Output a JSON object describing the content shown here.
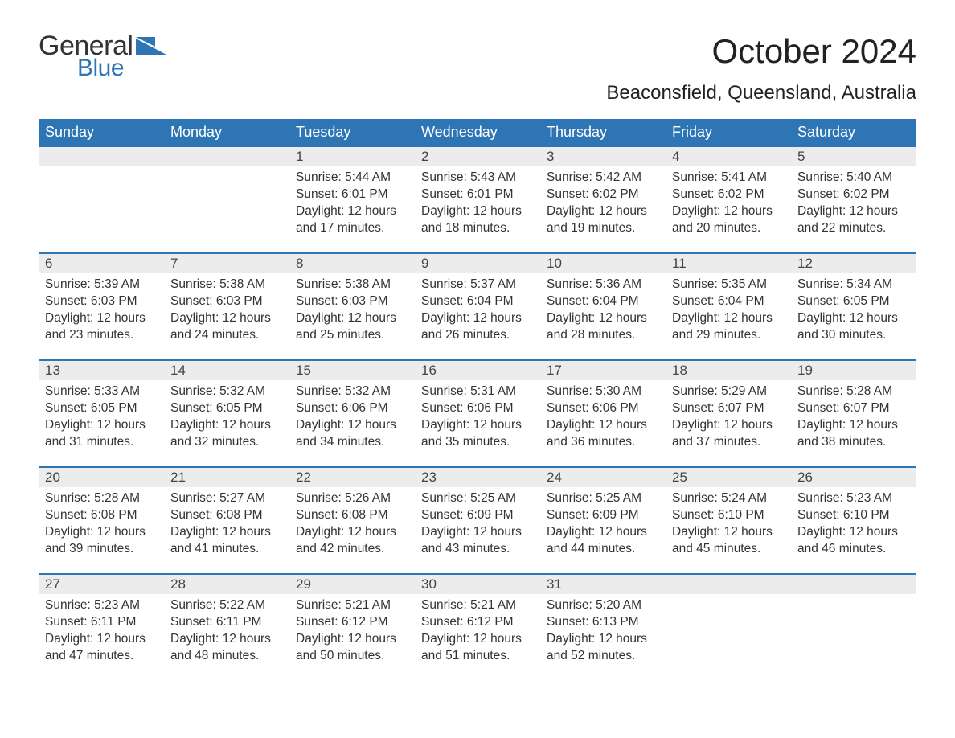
{
  "logo": {
    "general": "General",
    "blue": "Blue",
    "shape_color": "#2e75b6"
  },
  "title": "October 2024",
  "location": "Beaconsfield, Queensland, Australia",
  "colors": {
    "header_bg": "#2e75b6",
    "header_text": "#ffffff",
    "daynum_bg": "#ececec",
    "border_top": "#2e75b6",
    "body_text": "#333333"
  },
  "typography": {
    "title_fontsize": 42,
    "location_fontsize": 24,
    "header_fontsize": 18,
    "daynum_fontsize": 17,
    "body_fontsize": 15.5
  },
  "day_headers": [
    "Sunday",
    "Monday",
    "Tuesday",
    "Wednesday",
    "Thursday",
    "Friday",
    "Saturday"
  ],
  "weeks": [
    [
      null,
      null,
      {
        "num": "1",
        "sunrise": "5:44 AM",
        "sunset": "6:01 PM",
        "daylight": "12 hours and 17 minutes."
      },
      {
        "num": "2",
        "sunrise": "5:43 AM",
        "sunset": "6:01 PM",
        "daylight": "12 hours and 18 minutes."
      },
      {
        "num": "3",
        "sunrise": "5:42 AM",
        "sunset": "6:02 PM",
        "daylight": "12 hours and 19 minutes."
      },
      {
        "num": "4",
        "sunrise": "5:41 AM",
        "sunset": "6:02 PM",
        "daylight": "12 hours and 20 minutes."
      },
      {
        "num": "5",
        "sunrise": "5:40 AM",
        "sunset": "6:02 PM",
        "daylight": "12 hours and 22 minutes."
      }
    ],
    [
      {
        "num": "6",
        "sunrise": "5:39 AM",
        "sunset": "6:03 PM",
        "daylight": "12 hours and 23 minutes."
      },
      {
        "num": "7",
        "sunrise": "5:38 AM",
        "sunset": "6:03 PM",
        "daylight": "12 hours and 24 minutes."
      },
      {
        "num": "8",
        "sunrise": "5:38 AM",
        "sunset": "6:03 PM",
        "daylight": "12 hours and 25 minutes."
      },
      {
        "num": "9",
        "sunrise": "5:37 AM",
        "sunset": "6:04 PM",
        "daylight": "12 hours and 26 minutes."
      },
      {
        "num": "10",
        "sunrise": "5:36 AM",
        "sunset": "6:04 PM",
        "daylight": "12 hours and 28 minutes."
      },
      {
        "num": "11",
        "sunrise": "5:35 AM",
        "sunset": "6:04 PM",
        "daylight": "12 hours and 29 minutes."
      },
      {
        "num": "12",
        "sunrise": "5:34 AM",
        "sunset": "6:05 PM",
        "daylight": "12 hours and 30 minutes."
      }
    ],
    [
      {
        "num": "13",
        "sunrise": "5:33 AM",
        "sunset": "6:05 PM",
        "daylight": "12 hours and 31 minutes."
      },
      {
        "num": "14",
        "sunrise": "5:32 AM",
        "sunset": "6:05 PM",
        "daylight": "12 hours and 32 minutes."
      },
      {
        "num": "15",
        "sunrise": "5:32 AM",
        "sunset": "6:06 PM",
        "daylight": "12 hours and 34 minutes."
      },
      {
        "num": "16",
        "sunrise": "5:31 AM",
        "sunset": "6:06 PM",
        "daylight": "12 hours and 35 minutes."
      },
      {
        "num": "17",
        "sunrise": "5:30 AM",
        "sunset": "6:06 PM",
        "daylight": "12 hours and 36 minutes."
      },
      {
        "num": "18",
        "sunrise": "5:29 AM",
        "sunset": "6:07 PM",
        "daylight": "12 hours and 37 minutes."
      },
      {
        "num": "19",
        "sunrise": "5:28 AM",
        "sunset": "6:07 PM",
        "daylight": "12 hours and 38 minutes."
      }
    ],
    [
      {
        "num": "20",
        "sunrise": "5:28 AM",
        "sunset": "6:08 PM",
        "daylight": "12 hours and 39 minutes."
      },
      {
        "num": "21",
        "sunrise": "5:27 AM",
        "sunset": "6:08 PM",
        "daylight": "12 hours and 41 minutes."
      },
      {
        "num": "22",
        "sunrise": "5:26 AM",
        "sunset": "6:08 PM",
        "daylight": "12 hours and 42 minutes."
      },
      {
        "num": "23",
        "sunrise": "5:25 AM",
        "sunset": "6:09 PM",
        "daylight": "12 hours and 43 minutes."
      },
      {
        "num": "24",
        "sunrise": "5:25 AM",
        "sunset": "6:09 PM",
        "daylight": "12 hours and 44 minutes."
      },
      {
        "num": "25",
        "sunrise": "5:24 AM",
        "sunset": "6:10 PM",
        "daylight": "12 hours and 45 minutes."
      },
      {
        "num": "26",
        "sunrise": "5:23 AM",
        "sunset": "6:10 PM",
        "daylight": "12 hours and 46 minutes."
      }
    ],
    [
      {
        "num": "27",
        "sunrise": "5:23 AM",
        "sunset": "6:11 PM",
        "daylight": "12 hours and 47 minutes."
      },
      {
        "num": "28",
        "sunrise": "5:22 AM",
        "sunset": "6:11 PM",
        "daylight": "12 hours and 48 minutes."
      },
      {
        "num": "29",
        "sunrise": "5:21 AM",
        "sunset": "6:12 PM",
        "daylight": "12 hours and 50 minutes."
      },
      {
        "num": "30",
        "sunrise": "5:21 AM",
        "sunset": "6:12 PM",
        "daylight": "12 hours and 51 minutes."
      },
      {
        "num": "31",
        "sunrise": "5:20 AM",
        "sunset": "6:13 PM",
        "daylight": "12 hours and 52 minutes."
      },
      null,
      null
    ]
  ],
  "labels": {
    "sunrise": "Sunrise: ",
    "sunset": "Sunset: ",
    "daylight": "Daylight: "
  }
}
